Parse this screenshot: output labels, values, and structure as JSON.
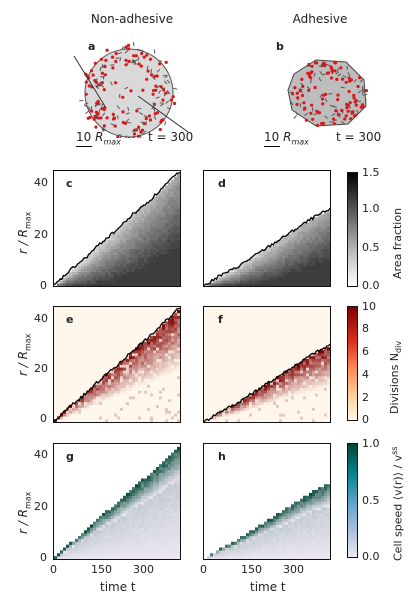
{
  "header": {
    "col_left": "Non-adhesive",
    "col_right": "Adhesive"
  },
  "panels": {
    "a": "a",
    "b": "b",
    "c": "c",
    "d": "d",
    "e": "e",
    "f": "f",
    "g": "g",
    "h": "h"
  },
  "snapshots": {
    "scale_label_prefix": "10 ",
    "scale_label_sym": "R",
    "scale_label_sub": "max",
    "time_label": "t = 300"
  },
  "axes": {
    "ylabel_main": "r / R",
    "ylabel_sub": "max",
    "xlabel": "time t",
    "y_ticks": [
      "40",
      "20",
      "0"
    ],
    "x_ticks": [
      "0",
      "150",
      "300"
    ]
  },
  "colorbars": {
    "area": {
      "label": "Area fraction",
      "ticks": [
        "1.5",
        "1.0",
        "0.5",
        "0.0"
      ]
    },
    "div": {
      "label_main": "Divisions N",
      "label_sub": "div",
      "ticks": [
        "10",
        "8",
        "6",
        "4",
        "2",
        "0"
      ]
    },
    "speed": {
      "label": "Cell speed ⟨v(r)⟩ / v",
      "label_sup": "ss",
      "ticks": [
        "1.0",
        "0.5",
        "0.0"
      ]
    }
  },
  "colors": {
    "area_high": "#000000",
    "area_low": "#ffffff",
    "div_high": "#7f0000",
    "div_low": "#fff7ec",
    "speed_high": "#014636",
    "speed_low": "#ece7f2",
    "cell_red": "#d7191c"
  },
  "chart_data": [
    {
      "id": "c",
      "type": "heatmap",
      "title": "",
      "xlabel": "time t",
      "ylabel": "r/Rmax",
      "xlim": [
        0,
        400
      ],
      "ylim": [
        0,
        45
      ],
      "front": {
        "x": [
          0,
          50,
          100,
          150,
          200,
          250,
          300,
          350,
          400
        ],
        "y": [
          0,
          6,
          11,
          17,
          22,
          28,
          33,
          39,
          45
        ]
      },
      "colorbar": {
        "label": "Area fraction",
        "range": [
          0.0,
          1.5
        ]
      }
    },
    {
      "id": "d",
      "type": "heatmap",
      "title": "",
      "xlabel": "time t",
      "ylabel": "r/Rmax",
      "xlim": [
        0,
        400
      ],
      "ylim": [
        0,
        45
      ],
      "front": {
        "x": [
          0,
          50,
          100,
          150,
          200,
          250,
          300,
          350,
          400
        ],
        "y": [
          0,
          4,
          7,
          11,
          15,
          19,
          23,
          27,
          30
        ]
      },
      "colorbar": {
        "label": "Area fraction",
        "range": [
          0.0,
          1.5
        ]
      }
    },
    {
      "id": "e",
      "type": "heatmap",
      "title": "",
      "xlabel": "time t",
      "ylabel": "r/Rmax",
      "xlim": [
        0,
        400
      ],
      "ylim": [
        0,
        45
      ],
      "front": {
        "x": [
          0,
          50,
          100,
          150,
          200,
          250,
          300,
          350,
          400
        ],
        "y": [
          0,
          6,
          11,
          17,
          22,
          28,
          33,
          39,
          45
        ]
      },
      "colorbar": {
        "label": "Divisions Ndiv",
        "range": [
          0,
          10
        ]
      }
    },
    {
      "id": "f",
      "type": "heatmap",
      "title": "",
      "xlabel": "time t",
      "ylabel": "r/Rmax",
      "xlim": [
        0,
        400
      ],
      "ylim": [
        0,
        45
      ],
      "front": {
        "x": [
          0,
          50,
          100,
          150,
          200,
          250,
          300,
          350,
          400
        ],
        "y": [
          0,
          4,
          7,
          11,
          15,
          19,
          23,
          27,
          30
        ]
      },
      "colorbar": {
        "label": "Divisions Ndiv",
        "range": [
          0,
          10
        ]
      }
    },
    {
      "id": "g",
      "type": "heatmap",
      "title": "",
      "xlabel": "time t",
      "ylabel": "r/Rmax",
      "xlim": [
        0,
        400
      ],
      "ylim": [
        0,
        45
      ],
      "front": {
        "x": [
          0,
          50,
          100,
          150,
          200,
          250,
          300,
          350,
          400
        ],
        "y": [
          0,
          6,
          11,
          17,
          22,
          28,
          33,
          39,
          45
        ]
      },
      "colorbar": {
        "label": "Cell speed <v(r)>/vss",
        "range": [
          0.0,
          1.0
        ]
      }
    },
    {
      "id": "h",
      "type": "heatmap",
      "title": "",
      "xlabel": "time t",
      "ylabel": "r/Rmax",
      "xlim": [
        0,
        400
      ],
      "ylim": [
        0,
        45
      ],
      "front": {
        "x": [
          0,
          50,
          100,
          150,
          200,
          250,
          300,
          350,
          400
        ],
        "y": [
          0,
          4,
          7,
          11,
          15,
          19,
          23,
          27,
          30
        ]
      },
      "colorbar": {
        "label": "Cell speed <v(r)>/vss",
        "range": [
          0.0,
          1.0
        ]
      }
    }
  ]
}
